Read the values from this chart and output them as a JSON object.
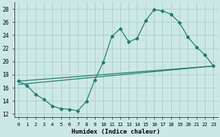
{
  "title": "",
  "xlabel": "Humidex (Indice chaleur)",
  "ylabel": "",
  "background_color": "#cce8e5",
  "grid_color": "#aed0cc",
  "line_color": "#1e7a6e",
  "xlim": [
    -0.5,
    23.5
  ],
  "ylim": [
    11.5,
    29.0
  ],
  "xticks": [
    0,
    1,
    2,
    3,
    4,
    5,
    6,
    7,
    8,
    9,
    10,
    11,
    12,
    13,
    14,
    15,
    16,
    17,
    18,
    19,
    20,
    21,
    22,
    23
  ],
  "yticks": [
    12,
    14,
    16,
    18,
    20,
    22,
    24,
    26,
    28
  ],
  "series1_x": [
    0,
    1,
    2,
    3,
    4,
    5,
    6,
    7,
    8,
    9,
    10,
    11,
    12,
    13,
    14,
    15,
    16,
    17,
    18,
    19,
    20,
    21,
    22,
    23
  ],
  "series1_y": [
    17.0,
    16.3,
    15.0,
    14.2,
    13.2,
    12.8,
    12.7,
    12.5,
    13.9,
    17.2,
    19.9,
    23.8,
    25.0,
    23.0,
    23.5,
    26.2,
    27.9,
    27.7,
    27.2,
    25.9,
    23.7,
    22.2,
    21.0,
    19.3
  ],
  "line2_x": [
    0,
    23
  ],
  "line2_y": [
    17.0,
    19.3
  ],
  "line3_x": [
    0,
    23
  ],
  "line3_y": [
    16.5,
    19.3
  ],
  "line4_x": [
    0,
    9,
    23
  ],
  "line4_y": [
    17.0,
    18.0,
    19.3
  ]
}
